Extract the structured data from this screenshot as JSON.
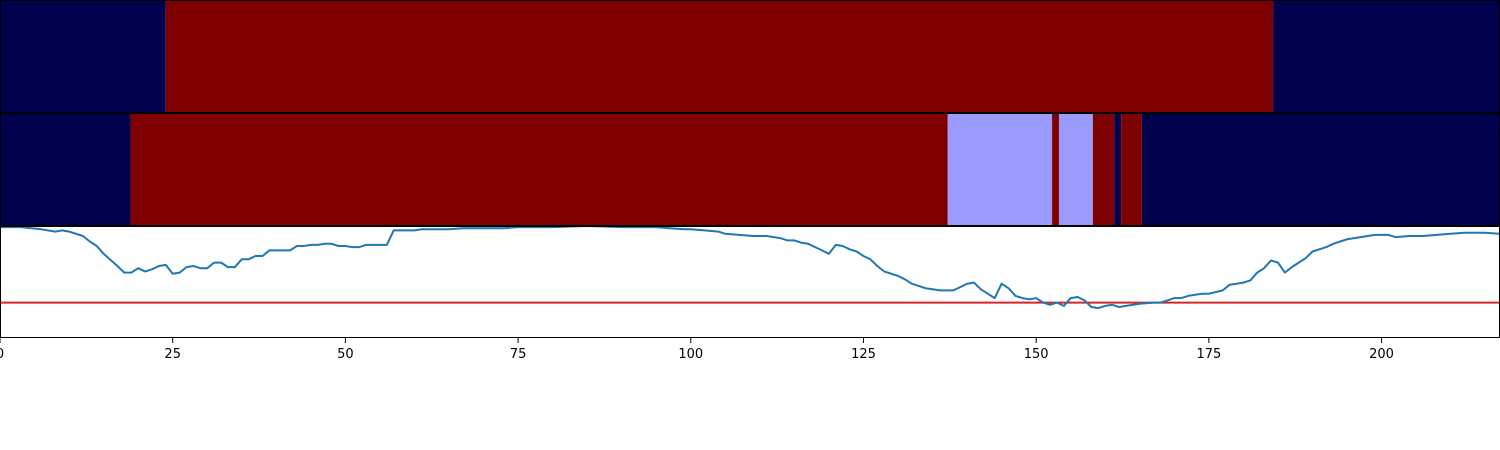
{
  "chart_data": {
    "type": "heatmap",
    "colors": {
      "state_low": "#00004c",
      "state_high": "#7f0000",
      "state_mid": "#9b9bff",
      "line": "#1f77b4",
      "threshold": "#d62728",
      "frame": "#000000"
    },
    "x_axis": {
      "range": [
        0,
        217
      ],
      "ticks": [
        0,
        25,
        50,
        75,
        100,
        125,
        150,
        175,
        200
      ],
      "tick_labels": [
        "0",
        "25",
        "50",
        "75",
        "100",
        "125",
        "150",
        "175",
        "200"
      ]
    },
    "tracks": [
      {
        "segments": [
          {
            "start": 0,
            "end": 24,
            "state": "low"
          },
          {
            "start": 24,
            "end": 184.3,
            "state": "high"
          },
          {
            "start": 184.3,
            "end": 217,
            "state": "low"
          }
        ]
      },
      {
        "segments": [
          {
            "start": 0,
            "end": 18.9,
            "state": "low"
          },
          {
            "start": 18.9,
            "end": 137.2,
            "state": "high"
          },
          {
            "start": 137.2,
            "end": 152.3,
            "state": "mid"
          },
          {
            "start": 152.3,
            "end": 153.3,
            "state": "high"
          },
          {
            "start": 153.3,
            "end": 158.2,
            "state": "mid"
          },
          {
            "start": 158.2,
            "end": 161.3,
            "state": "high"
          },
          {
            "start": 161.3,
            "end": 162.3,
            "state": "low"
          },
          {
            "start": 162.3,
            "end": 165.3,
            "state": "high"
          },
          {
            "start": 165.3,
            "end": 217,
            "state": "low"
          }
        ]
      }
    ],
    "line_series": {
      "ylim": [
        0,
        1
      ],
      "threshold": 0.31,
      "points": [
        [
          0,
          0.99
        ],
        [
          3,
          0.99
        ],
        [
          6,
          0.97
        ],
        [
          8,
          0.95
        ],
        [
          9,
          0.96
        ],
        [
          10,
          0.95
        ],
        [
          12,
          0.91
        ],
        [
          13,
          0.86
        ],
        [
          14,
          0.82
        ],
        [
          15,
          0.75
        ],
        [
          17,
          0.64
        ],
        [
          18,
          0.58
        ],
        [
          19,
          0.58
        ],
        [
          20,
          0.62
        ],
        [
          21,
          0.59
        ],
        [
          22,
          0.61
        ],
        [
          23,
          0.64
        ],
        [
          24,
          0.65
        ],
        [
          25,
          0.57
        ],
        [
          26,
          0.58
        ],
        [
          27,
          0.63
        ],
        [
          28,
          0.64
        ],
        [
          29,
          0.62
        ],
        [
          30,
          0.62
        ],
        [
          31,
          0.67
        ],
        [
          32,
          0.67
        ],
        [
          33,
          0.63
        ],
        [
          34,
          0.63
        ],
        [
          35,
          0.7
        ],
        [
          36,
          0.7
        ],
        [
          37,
          0.73
        ],
        [
          38,
          0.73
        ],
        [
          39,
          0.78
        ],
        [
          40,
          0.78
        ],
        [
          41,
          0.78
        ],
        [
          42,
          0.78
        ],
        [
          43,
          0.82
        ],
        [
          44,
          0.82
        ],
        [
          45,
          0.83
        ],
        [
          46,
          0.83
        ],
        [
          47,
          0.84
        ],
        [
          48,
          0.84
        ],
        [
          49,
          0.82
        ],
        [
          50,
          0.82
        ],
        [
          51,
          0.81
        ],
        [
          52,
          0.81
        ],
        [
          53,
          0.83
        ],
        [
          54,
          0.83
        ],
        [
          55,
          0.83
        ],
        [
          56,
          0.83
        ],
        [
          57,
          0.96
        ],
        [
          58,
          0.96
        ],
        [
          60,
          0.96
        ],
        [
          61,
          0.97
        ],
        [
          63,
          0.97
        ],
        [
          65,
          0.97
        ],
        [
          67,
          0.98
        ],
        [
          70,
          0.98
        ],
        [
          73,
          0.98
        ],
        [
          75,
          0.99
        ],
        [
          80,
          0.99
        ],
        [
          85,
          1.0
        ],
        [
          90,
          0.99
        ],
        [
          95,
          0.99
        ],
        [
          97,
          0.98
        ],
        [
          99,
          0.97
        ],
        [
          100,
          0.97
        ],
        [
          102,
          0.96
        ],
        [
          104,
          0.95
        ],
        [
          105,
          0.93
        ],
        [
          107,
          0.92
        ],
        [
          109,
          0.91
        ],
        [
          111,
          0.91
        ],
        [
          112,
          0.9
        ],
        [
          113,
          0.89
        ],
        [
          114,
          0.87
        ],
        [
          115,
          0.87
        ],
        [
          116,
          0.85
        ],
        [
          117,
          0.84
        ],
        [
          118,
          0.81
        ],
        [
          119,
          0.78
        ],
        [
          120,
          0.75
        ],
        [
          121,
          0.83
        ],
        [
          122,
          0.82
        ],
        [
          123,
          0.79
        ],
        [
          124,
          0.77
        ],
        [
          125,
          0.73
        ],
        [
          126,
          0.7
        ],
        [
          127,
          0.64
        ],
        [
          128,
          0.59
        ],
        [
          129,
          0.57
        ],
        [
          130,
          0.55
        ],
        [
          131,
          0.52
        ],
        [
          132,
          0.48
        ],
        [
          133,
          0.46
        ],
        [
          134,
          0.44
        ],
        [
          135,
          0.43
        ],
        [
          136,
          0.42
        ],
        [
          137,
          0.42
        ],
        [
          138,
          0.42
        ],
        [
          139,
          0.45
        ],
        [
          140,
          0.48
        ],
        [
          141,
          0.49
        ],
        [
          142,
          0.43
        ],
        [
          143,
          0.39
        ],
        [
          144,
          0.35
        ],
        [
          145,
          0.48
        ],
        [
          146,
          0.44
        ],
        [
          147,
          0.37
        ],
        [
          148,
          0.35
        ],
        [
          149,
          0.34
        ],
        [
          150,
          0.35
        ],
        [
          151,
          0.31
        ],
        [
          152,
          0.29
        ],
        [
          153,
          0.31
        ],
        [
          154,
          0.28
        ],
        [
          155,
          0.35
        ],
        [
          156,
          0.36
        ],
        [
          157,
          0.33
        ],
        [
          158,
          0.27
        ],
        [
          159,
          0.26
        ],
        [
          160,
          0.28
        ],
        [
          161,
          0.29
        ],
        [
          162,
          0.27
        ],
        [
          163,
          0.28
        ],
        [
          164,
          0.29
        ],
        [
          165,
          0.3
        ],
        [
          167,
          0.31
        ],
        [
          168,
          0.31
        ],
        [
          169,
          0.33
        ],
        [
          170,
          0.35
        ],
        [
          171,
          0.35
        ],
        [
          172,
          0.37
        ],
        [
          173,
          0.38
        ],
        [
          174,
          0.39
        ],
        [
          175,
          0.39
        ],
        [
          177,
          0.42
        ],
        [
          178,
          0.47
        ],
        [
          179,
          0.48
        ],
        [
          180,
          0.49
        ],
        [
          181,
          0.51
        ],
        [
          182,
          0.58
        ],
        [
          183,
          0.62
        ],
        [
          184,
          0.69
        ],
        [
          185,
          0.67
        ],
        [
          186,
          0.58
        ],
        [
          187,
          0.63
        ],
        [
          188,
          0.67
        ],
        [
          189,
          0.71
        ],
        [
          190,
          0.77
        ],
        [
          192,
          0.81
        ],
        [
          193,
          0.84
        ],
        [
          194,
          0.86
        ],
        [
          195,
          0.88
        ],
        [
          197,
          0.9
        ],
        [
          199,
          0.92
        ],
        [
          201,
          0.92
        ],
        [
          202,
          0.9
        ],
        [
          204,
          0.91
        ],
        [
          206,
          0.91
        ],
        [
          208,
          0.92
        ],
        [
          210,
          0.93
        ],
        [
          212,
          0.94
        ],
        [
          215,
          0.94
        ],
        [
          217,
          0.93
        ]
      ]
    }
  }
}
